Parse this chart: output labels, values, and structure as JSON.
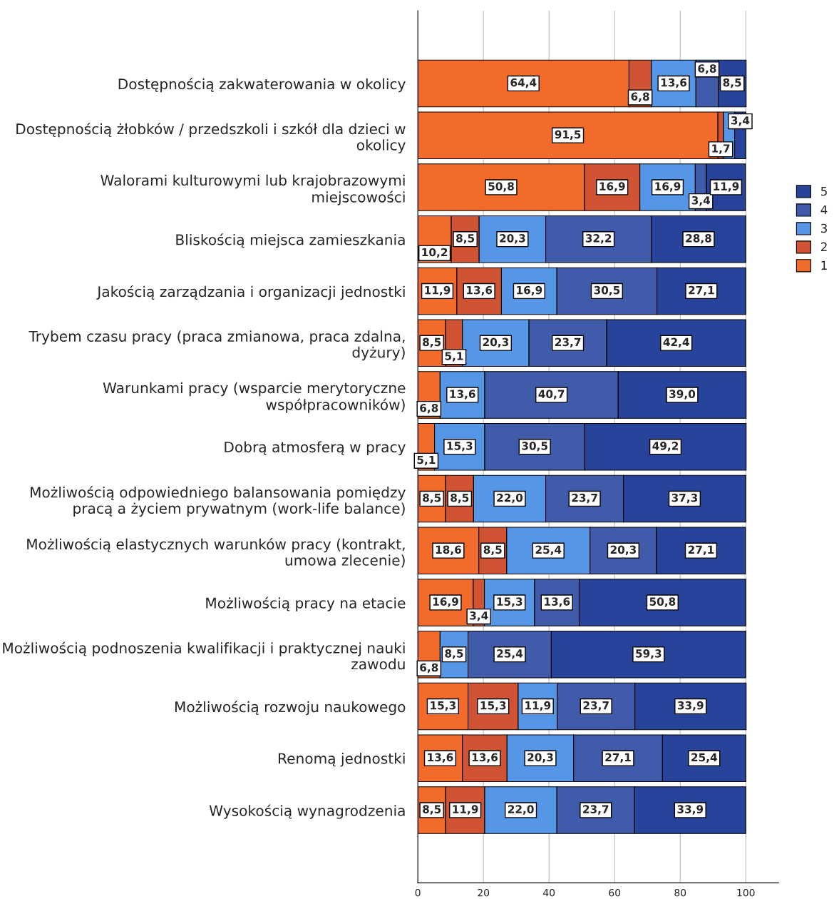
{
  "chart_data": {
    "type": "bar",
    "orientation": "horizontal",
    "stacked": true,
    "categories": [
      "Dostępnością zakwaterowania w okolicy",
      "Dostępnością żłobków / przedszkoli i szkół dla dzieci w\nokolicy",
      "Walorami kulturowymi lub krajobrazowymi\nmiejscowości",
      "Bliskością miejsca zamieszkania",
      "Jakością zarządzania i organizacji jednostki",
      "Trybem czasu pracy (praca zmianowa, praca zdalna,\ndyżury)",
      "Warunkami pracy (wsparcie merytoryczne\nwspółpracowników)",
      "Dobrą atmosferą w pracy",
      "Możliwością odpowiedniego balansowania pomiędzy\npracą a życiem prywatnym (work-life balance)",
      "Możliwością elastycznych warunków pracy (kontrakt,\numowa zlecenie)",
      "Możliwością pracy na etacie",
      "Możliwością podnoszenia kwalifikacji i praktycznej nauki\nzawodu",
      "Możliwością rozwoju naukowego",
      "Renomą jednostki",
      "Wysokością wynagrodzenia"
    ],
    "series": [
      {
        "name": "1",
        "color": "#f26b2a",
        "values": [
          64.4,
          91.5,
          50.8,
          10.2,
          11.9,
          8.5,
          6.8,
          5.1,
          8.5,
          18.6,
          16.9,
          6.8,
          15.3,
          13.6,
          8.5
        ],
        "value_labels": [
          "64,4",
          "91,5",
          "50,8",
          "10,2",
          "11,9",
          "8,5",
          "6,8",
          "5,1",
          "8,5",
          "18,6",
          "16,9",
          "6,8",
          "15,3",
          "13,6",
          "8,5"
        ]
      },
      {
        "name": "2",
        "color": "#d05433",
        "values": [
          6.8,
          1.7,
          16.9,
          8.5,
          13.6,
          5.1,
          0,
          0,
          8.5,
          8.5,
          3.4,
          0,
          15.3,
          13.6,
          11.9
        ],
        "value_labels": [
          "6,8",
          "1,7",
          "16,9",
          "8,5",
          "13,6",
          "5,1",
          null,
          null,
          "8,5",
          "8,5",
          "3,4",
          null,
          "15,3",
          "13,6",
          "11,9"
        ]
      },
      {
        "name": "3",
        "color": "#5596e6",
        "values": [
          13.6,
          3.4,
          16.9,
          20.3,
          16.9,
          20.3,
          13.6,
          15.3,
          22.0,
          25.4,
          15.3,
          8.5,
          11.9,
          20.3,
          22.0
        ],
        "value_labels": [
          "13,6",
          null,
          "16,9",
          "20,3",
          "16,9",
          "20,3",
          "13,6",
          "15,3",
          "22,0",
          "25,4",
          "15,3",
          "8,5",
          "11,9",
          "20,3",
          "22,0"
        ]
      },
      {
        "name": "4",
        "color": "#3f5ba9",
        "values": [
          6.8,
          0,
          3.4,
          32.2,
          30.5,
          23.7,
          40.7,
          30.5,
          23.7,
          20.3,
          13.6,
          25.4,
          23.7,
          27.1,
          23.7
        ],
        "value_labels": [
          "6,8",
          null,
          "3,4",
          "32,2",
          "30,5",
          "23,7",
          "40,7",
          "30,5",
          "23,7",
          "20,3",
          "13,6",
          "25,4",
          "23,7",
          "27,1",
          "23,7"
        ]
      },
      {
        "name": "5",
        "color": "#27449a",
        "values": [
          8.5,
          3.4,
          11.9,
          28.8,
          27.1,
          42.4,
          39.0,
          49.2,
          37.3,
          27.1,
          50.8,
          59.3,
          33.9,
          25.4,
          33.9
        ],
        "value_labels": [
          "8,5",
          "3,4",
          "11,9",
          "28,8",
          "27,1",
          "42,4",
          "39,0",
          "49,2",
          "37,3",
          "27,1",
          "50,8",
          "59,3",
          "33,9",
          "25,4",
          "33,9"
        ]
      }
    ],
    "xlim": [
      0,
      110
    ],
    "xticks": [
      0,
      20,
      40,
      60,
      80,
      100
    ],
    "grid": "x",
    "legend": "right"
  }
}
